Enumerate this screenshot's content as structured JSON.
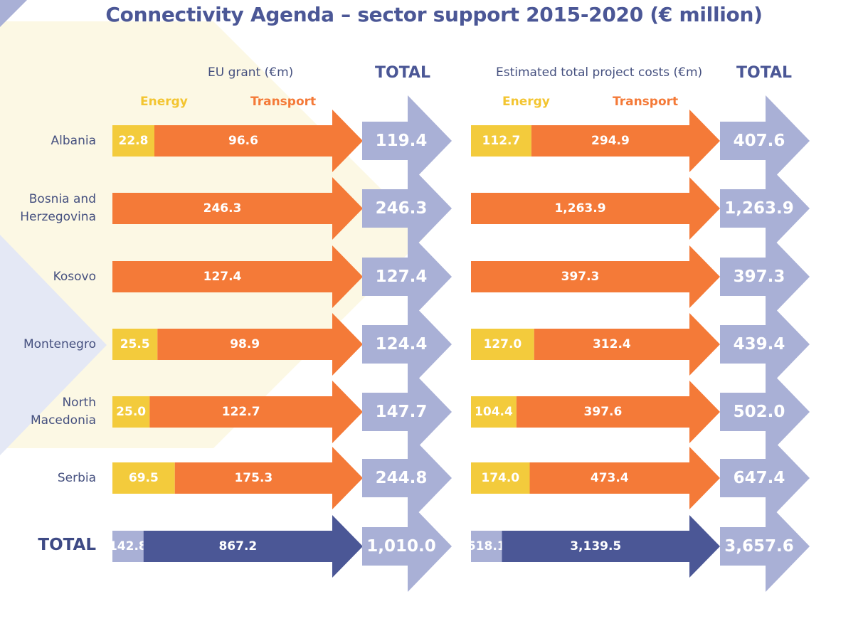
{
  "title": "Connectivity Agenda – sector support 2015-2020 (€ million)",
  "headers": {
    "left_group": "EU grant (€m)",
    "right_group": "Estimated total project costs (€m)",
    "total": "TOTAL",
    "energy": "Energy",
    "transport": "Transport"
  },
  "colors": {
    "energy": "#f3cb3c",
    "transport": "#f47a38",
    "total_arrow": "#a9b0d6",
    "total_energy": "#a9b0d6",
    "total_transport": "#4b5796",
    "title": "#4b5796"
  },
  "rows": [
    {
      "country": "Albania"
    },
    {
      "country": "Bosnia and Herzegovina"
    },
    {
      "country": "Kosovo"
    },
    {
      "country": "Montenegro"
    },
    {
      "country": "North Macedonia"
    },
    {
      "country": "Serbia"
    },
    {
      "country": "TOTAL"
    }
  ],
  "chart_data": [
    {
      "type": "bar",
      "stacked": true,
      "orientation": "horizontal",
      "title": "EU grant (€m)",
      "categories": [
        "Albania",
        "Bosnia and Herzegovina",
        "Kosovo",
        "Montenegro",
        "North Macedonia",
        "Serbia",
        "TOTAL"
      ],
      "series": [
        {
          "name": "Energy",
          "values": [
            22.8,
            null,
            null,
            25.5,
            25.0,
            69.5,
            142.8
          ],
          "labels": [
            "22.8",
            "",
            "",
            "25.5",
            "25.0",
            "69.5",
            "142.8"
          ]
        },
        {
          "name": "Transport",
          "values": [
            96.6,
            246.3,
            127.4,
            98.9,
            122.7,
            175.3,
            867.2
          ],
          "labels": [
            "96.6",
            "246.3",
            "127.4",
            "98.9",
            "122.7",
            "175.3",
            "867.2"
          ]
        }
      ],
      "totals": [
        "119.4",
        "246.3",
        "127.4",
        "124.4",
        "147.7",
        "244.8",
        "1,010.0"
      ]
    },
    {
      "type": "bar",
      "stacked": true,
      "orientation": "horizontal",
      "title": "Estimated total project costs (€m)",
      "categories": [
        "Albania",
        "Bosnia and Herzegovina",
        "Kosovo",
        "Montenegro",
        "North Macedonia",
        "Serbia",
        "TOTAL"
      ],
      "series": [
        {
          "name": "Energy",
          "values": [
            112.7,
            null,
            null,
            127.0,
            104.4,
            174.0,
            518.1
          ],
          "labels": [
            "112.7",
            "",
            "",
            "127.0",
            "104.4",
            "174.0",
            "518.1"
          ]
        },
        {
          "name": "Transport",
          "values": [
            294.9,
            1263.9,
            397.3,
            312.4,
            397.6,
            473.4,
            3139.5
          ],
          "labels": [
            "294.9",
            "1,263.9",
            "397.3",
            "312.4",
            "397.6",
            "473.4",
            "3,139.5"
          ]
        }
      ],
      "totals": [
        "407.6",
        "1,263.9",
        "397.3",
        "439.4",
        "502.0",
        "647.4",
        "3,657.6"
      ]
    }
  ]
}
